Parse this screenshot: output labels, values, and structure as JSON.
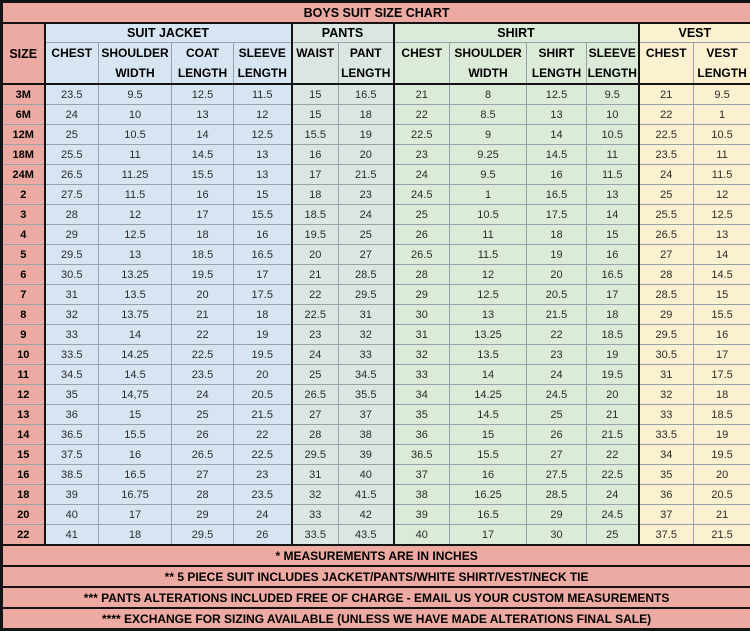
{
  "chart_data": {
    "type": "table",
    "title": "BOYS SUIT SIZE CHART",
    "size_header": "SIZE",
    "sections": [
      {
        "label": "SUIT JACKET",
        "columns": 4
      },
      {
        "label": "PANTS",
        "columns": 2
      },
      {
        "label": "SHIRT",
        "columns": 4
      },
      {
        "label": "VEST",
        "columns": 2
      }
    ],
    "columns": [
      {
        "line1": "CHEST",
        "line2": ""
      },
      {
        "line1": "SHOULDER",
        "line2": "WIDTH"
      },
      {
        "line1": "COAT",
        "line2": "LENGTH"
      },
      {
        "line1": "SLEEVE",
        "line2": "LENGTH"
      },
      {
        "line1": "WAIST",
        "line2": ""
      },
      {
        "line1": "PANT",
        "line2": "LENGTH"
      },
      {
        "line1": "CHEST",
        "line2": ""
      },
      {
        "line1": "SHOULDER",
        "line2": "WIDTH"
      },
      {
        "line1": "SHIRT",
        "line2": "LENGTH"
      },
      {
        "line1": "SLEEVE",
        "line2": "LENGTH"
      },
      {
        "line1": "CHEST",
        "line2": ""
      },
      {
        "line1": "VEST",
        "line2": "LENGTH"
      }
    ],
    "rows": [
      {
        "size": "3M",
        "values": [
          "23.5",
          "9.5",
          "12.5",
          "11.5",
          "15",
          "16.5",
          "21",
          "8",
          "12.5",
          "9.5",
          "21",
          "9.5"
        ]
      },
      {
        "size": "6M",
        "values": [
          "24",
          "10",
          "13",
          "12",
          "15",
          "18",
          "22",
          "8.5",
          "13",
          "10",
          "22",
          "1"
        ]
      },
      {
        "size": "12M",
        "values": [
          "25",
          "10.5",
          "14",
          "12.5",
          "15.5",
          "19",
          "22.5",
          "9",
          "14",
          "10.5",
          "22.5",
          "10.5"
        ]
      },
      {
        "size": "18M",
        "values": [
          "25.5",
          "11",
          "14.5",
          "13",
          "16",
          "20",
          "23",
          "9.25",
          "14.5",
          "11",
          "23.5",
          "11"
        ]
      },
      {
        "size": "24M",
        "values": [
          "26.5",
          "11.25",
          "15.5",
          "13",
          "17",
          "21.5",
          "24",
          "9.5",
          "16",
          "11.5",
          "24",
          "11.5"
        ]
      },
      {
        "size": "2",
        "values": [
          "27.5",
          "11.5",
          "16",
          "15",
          "18",
          "23",
          "24.5",
          "1",
          "16.5",
          "13",
          "25",
          "12"
        ]
      },
      {
        "size": "3",
        "values": [
          "28",
          "12",
          "17",
          "15.5",
          "18.5",
          "24",
          "25",
          "10.5",
          "17.5",
          "14",
          "25.5",
          "12.5"
        ]
      },
      {
        "size": "4",
        "values": [
          "29",
          "12.5",
          "18",
          "16",
          "19.5",
          "25",
          "26",
          "11",
          "18",
          "15",
          "26.5",
          "13"
        ]
      },
      {
        "size": "5",
        "values": [
          "29.5",
          "13",
          "18.5",
          "16.5",
          "20",
          "27",
          "26.5",
          "11.5",
          "19",
          "16",
          "27",
          "14"
        ]
      },
      {
        "size": "6",
        "values": [
          "30.5",
          "13.25",
          "19.5",
          "17",
          "21",
          "28.5",
          "28",
          "12",
          "20",
          "16.5",
          "28",
          "14.5"
        ]
      },
      {
        "size": "7",
        "values": [
          "31",
          "13.5",
          "20",
          "17.5",
          "22",
          "29.5",
          "29",
          "12.5",
          "20.5",
          "17",
          "28.5",
          "15"
        ]
      },
      {
        "size": "8",
        "values": [
          "32",
          "13.75",
          "21",
          "18",
          "22.5",
          "31",
          "30",
          "13",
          "21.5",
          "18",
          "29",
          "15.5"
        ]
      },
      {
        "size": "9",
        "values": [
          "33",
          "14",
          "22",
          "19",
          "23",
          "32",
          "31",
          "13.25",
          "22",
          "18.5",
          "29.5",
          "16"
        ]
      },
      {
        "size": "10",
        "values": [
          "33.5",
          "14.25",
          "22.5",
          "19.5",
          "24",
          "33",
          "32",
          "13.5",
          "23",
          "19",
          "30.5",
          "17"
        ]
      },
      {
        "size": "11",
        "values": [
          "34.5",
          "14.5",
          "23.5",
          "20",
          "25",
          "34.5",
          "33",
          "14",
          "24",
          "19.5",
          "31",
          "17.5"
        ]
      },
      {
        "size": "12",
        "values": [
          "35",
          "14,75",
          "24",
          "20.5",
          "26.5",
          "35.5",
          "34",
          "14.25",
          "24.5",
          "20",
          "32",
          "18"
        ]
      },
      {
        "size": "13",
        "values": [
          "36",
          "15",
          "25",
          "21.5",
          "27",
          "37",
          "35",
          "14.5",
          "25",
          "21",
          "33",
          "18.5"
        ]
      },
      {
        "size": "14",
        "values": [
          "36.5",
          "15.5",
          "26",
          "22",
          "28",
          "38",
          "36",
          "15",
          "26",
          "21.5",
          "33.5",
          "19"
        ]
      },
      {
        "size": "15",
        "values": [
          "37.5",
          "16",
          "26.5",
          "22.5",
          "29.5",
          "39",
          "36.5",
          "15.5",
          "27",
          "22",
          "34",
          "19.5"
        ]
      },
      {
        "size": "16",
        "values": [
          "38.5",
          "16.5",
          "27",
          "23",
          "31",
          "40",
          "37",
          "16",
          "27.5",
          "22.5",
          "35",
          "20"
        ]
      },
      {
        "size": "18",
        "values": [
          "39",
          "16.75",
          "28",
          "23.5",
          "32",
          "41.5",
          "38",
          "16.25",
          "28.5",
          "24",
          "36",
          "20.5"
        ]
      },
      {
        "size": "20",
        "values": [
          "40",
          "17",
          "29",
          "24",
          "33",
          "42",
          "39",
          "16.5",
          "29",
          "24.5",
          "37",
          "21"
        ]
      },
      {
        "size": "22",
        "values": [
          "41",
          "18",
          "29.5",
          "26",
          "33.5",
          "43.5",
          "40",
          "17",
          "30",
          "25",
          "37.5",
          "21.5"
        ]
      }
    ],
    "footnotes": [
      "* MEASUREMENTS ARE IN INCHES",
      "** 5 PIECE SUIT INCLUDES JACKET/PANTS/WHITE SHIRT/VEST/NECK TIE",
      "*** PANTS ALTERATIONS INCLUDED FREE OF CHARGE - EMAIL US YOUR CUSTOM MEASUREMENTS",
      "**** EXCHANGE FOR SIZING AVAILABLE (UNLESS WE HAVE MADE ALTERATIONS FINAL SALE)"
    ]
  },
  "colors": {
    "title_and_size_bg": "#ecaaa2",
    "suit_jacket_bg": "#d7e4f1",
    "pants_bg": "#dbe5e2",
    "shirt_bg": "#dcead8",
    "vest_bg": "#fbf0cf",
    "grid_line": "#98a2aa",
    "frame_line": "#141414"
  }
}
